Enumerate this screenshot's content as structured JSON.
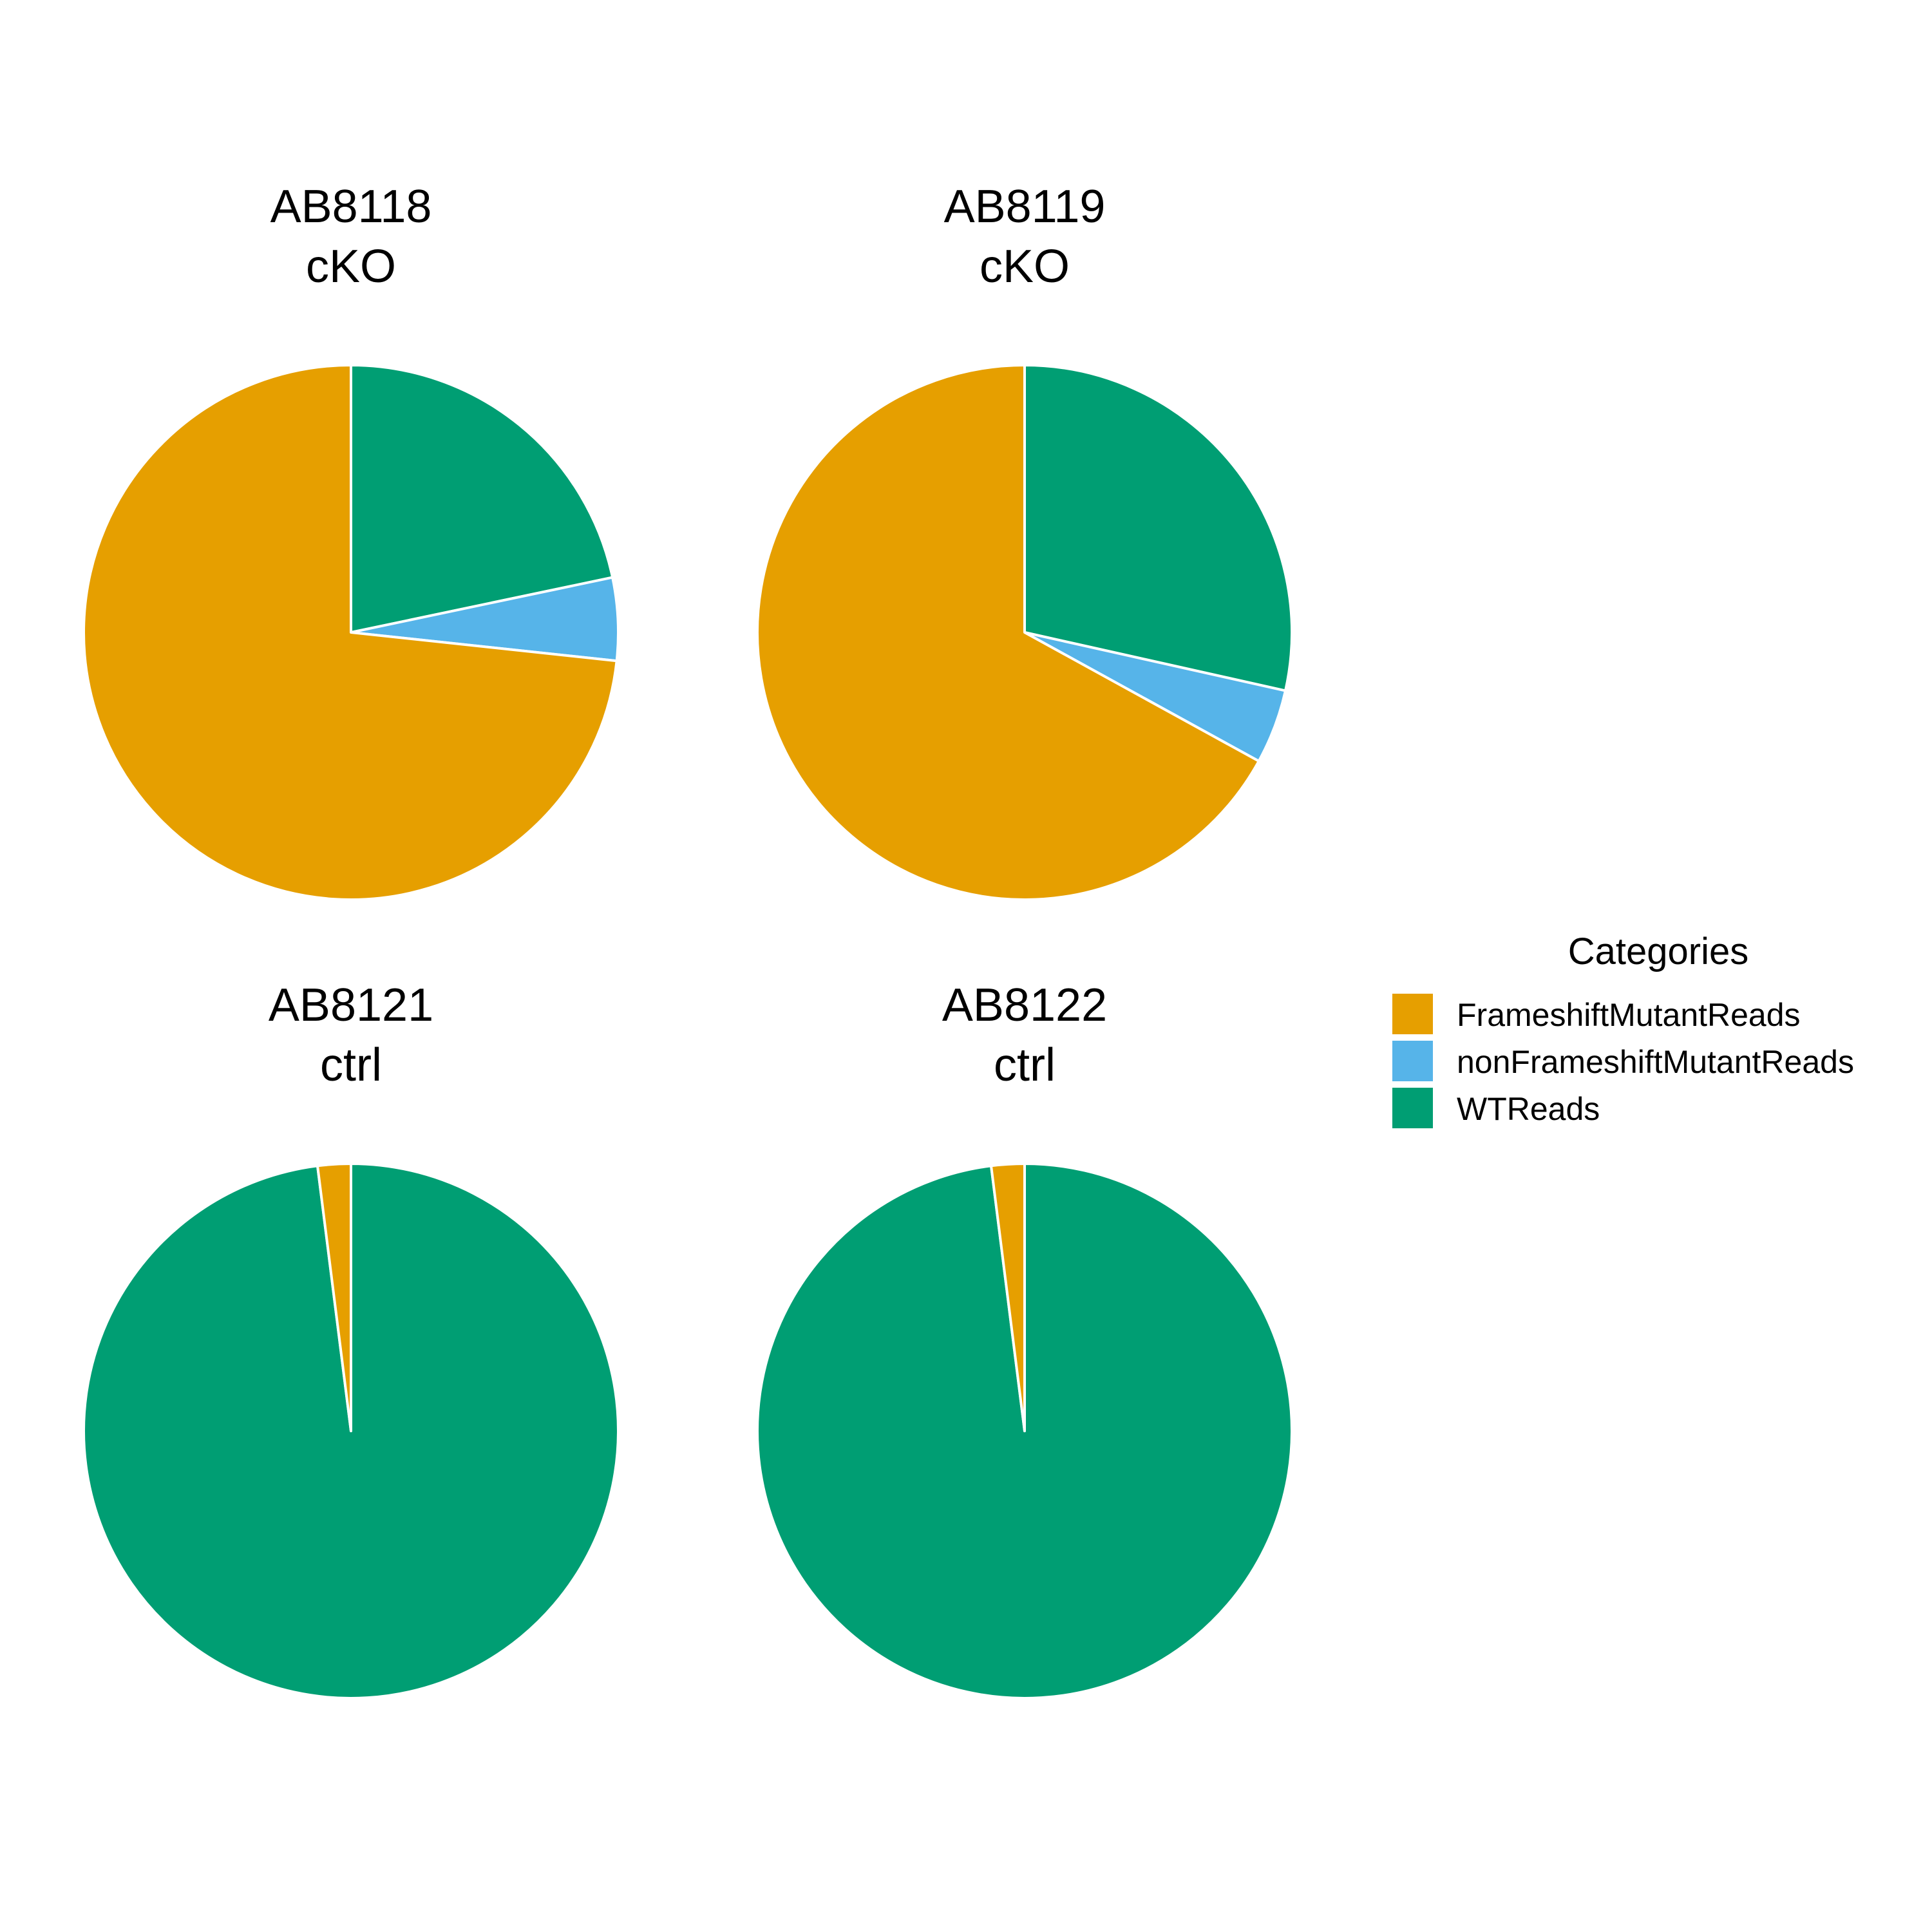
{
  "chart_data": {
    "type": "pie",
    "categories": [
      "FrameshiftMutantReads",
      "nonFrameshiftMutantReads",
      "WTReads"
    ],
    "colors": {
      "FrameshiftMutantReads": "#E69F00",
      "nonFrameshiftMutantReads": "#56B4E9",
      "WTReads": "#009E73"
    },
    "legend": {
      "title": "Categories",
      "placement": "right"
    },
    "panels": [
      {
        "title_line1": "AB8118",
        "title_line2": "cKO",
        "values": {
          "FrameshiftMutantReads": 0.733,
          "nonFrameshiftMutantReads": 0.05,
          "WTReads": 0.217
        }
      },
      {
        "title_line1": "AB8119",
        "title_line2": "cKO",
        "values": {
          "FrameshiftMutantReads": 0.67,
          "nonFrameshiftMutantReads": 0.045,
          "WTReads": 0.285
        }
      },
      {
        "title_line1": "AB8121",
        "title_line2": "ctrl",
        "values": {
          "FrameshiftMutantReads": 0.02,
          "nonFrameshiftMutantReads": 0.0,
          "WTReads": 0.98
        }
      },
      {
        "title_line1": "AB8122",
        "title_line2": "ctrl",
        "values": {
          "FrameshiftMutantReads": 0.02,
          "nonFrameshiftMutantReads": 0.0,
          "WTReads": 0.98
        }
      }
    ]
  }
}
